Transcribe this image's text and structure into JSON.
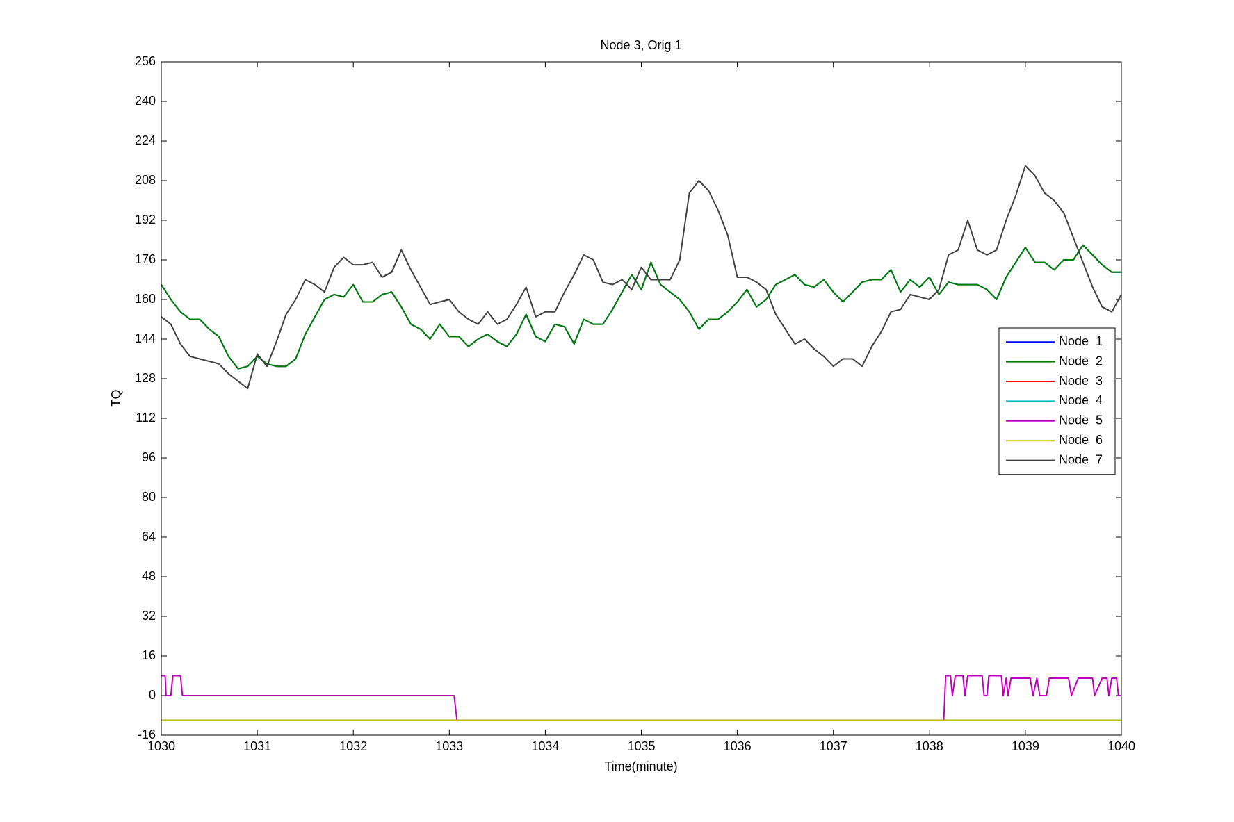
{
  "chart_data": {
    "type": "line",
    "title": "Node 3, Orig 1",
    "xlabel": "Time(minute)",
    "ylabel": "TQ",
    "xlim": [
      1030,
      1040
    ],
    "ylim": [
      -16,
      256
    ],
    "xticks": [
      1030,
      1031,
      1032,
      1033,
      1034,
      1035,
      1036,
      1037,
      1038,
      1039,
      1040
    ],
    "yticks": [
      -16,
      0,
      16,
      32,
      48,
      64,
      80,
      96,
      112,
      128,
      144,
      160,
      176,
      192,
      208,
      224,
      240,
      256
    ],
    "legend": "right",
    "x": [
      1030,
      1030.1,
      1030.2,
      1030.3,
      1030.4,
      1030.5,
      1030.6,
      1030.7,
      1030.8,
      1030.9,
      1031,
      1031.1,
      1031.2,
      1031.3,
      1031.4,
      1031.5,
      1031.6,
      1031.7,
      1031.8,
      1031.9,
      1032,
      1032.1,
      1032.2,
      1032.3,
      1032.4,
      1032.5,
      1032.6,
      1032.7,
      1032.8,
      1032.9,
      1033,
      1033.1,
      1033.2,
      1033.3,
      1033.4,
      1033.5,
      1033.6,
      1033.7,
      1033.8,
      1033.9,
      1034,
      1034.1,
      1034.2,
      1034.3,
      1034.4,
      1034.5,
      1034.6,
      1034.7,
      1034.8,
      1034.9,
      1035,
      1035.1,
      1035.2,
      1035.3,
      1035.4,
      1035.5,
      1035.6,
      1035.7,
      1035.8,
      1035.9,
      1036,
      1036.1,
      1036.2,
      1036.3,
      1036.4,
      1036.5,
      1036.6,
      1036.7,
      1036.8,
      1036.9,
      1037,
      1037.1,
      1037.2,
      1037.3,
      1037.4,
      1037.5,
      1037.6,
      1037.7,
      1037.8,
      1037.9,
      1038,
      1038.1,
      1038.2,
      1038.3,
      1038.4,
      1038.5,
      1038.6,
      1038.7,
      1038.8,
      1038.9,
      1039,
      1039.1,
      1039.2,
      1039.3,
      1039.4,
      1039.5,
      1039.6,
      1039.7,
      1039.8,
      1039.9,
      1040
    ],
    "series": [
      {
        "name": "Node  1",
        "color": "#0000ff",
        "values": [
          166,
          160,
          155,
          152,
          152,
          148,
          145,
          137,
          132,
          133,
          137,
          134,
          133,
          133,
          136,
          146,
          153,
          160,
          162,
          161,
          166,
          159,
          159,
          162,
          163,
          157,
          150,
          148,
          144,
          150,
          145,
          145,
          141,
          144,
          146,
          143,
          141,
          146,
          154,
          145,
          143,
          150,
          149,
          142,
          152,
          150,
          150,
          156,
          163,
          170,
          164,
          175,
          166,
          163,
          160,
          155,
          148,
          152,
          152,
          155,
          159,
          164,
          157,
          160,
          166,
          168,
          170,
          166,
          165,
          168,
          163,
          159,
          163,
          167,
          168,
          168,
          172,
          163,
          168,
          165,
          169,
          162,
          167,
          166,
          166,
          166,
          164,
          160,
          169,
          175,
          181,
          175,
          175,
          172,
          176,
          176,
          182,
          178,
          174,
          171,
          171
        ]
      },
      {
        "name": "Node  2",
        "color": "#008000",
        "values": [
          166,
          160,
          155,
          152,
          152,
          148,
          145,
          137,
          132,
          133,
          137,
          134,
          133,
          133,
          136,
          146,
          153,
          160,
          162,
          161,
          166,
          159,
          159,
          162,
          163,
          157,
          150,
          148,
          144,
          150,
          145,
          145,
          141,
          144,
          146,
          143,
          141,
          146,
          154,
          145,
          143,
          150,
          149,
          142,
          152,
          150,
          150,
          156,
          163,
          170,
          164,
          175,
          166,
          163,
          160,
          155,
          148,
          152,
          152,
          155,
          159,
          164,
          157,
          160,
          166,
          168,
          170,
          166,
          165,
          168,
          163,
          159,
          163,
          167,
          168,
          168,
          172,
          163,
          168,
          165,
          169,
          162,
          167,
          166,
          166,
          166,
          164,
          160,
          169,
          175,
          181,
          175,
          175,
          172,
          176,
          176,
          182,
          178,
          174,
          171,
          171
        ]
      },
      {
        "name": "Node  3",
        "color": "#ff0000",
        "x": [
          1030,
          1040
        ],
        "values": [
          -10,
          -10
        ]
      },
      {
        "name": "Node  4",
        "color": "#00bfbf",
        "x": [
          1030,
          1040
        ],
        "values": [
          -10,
          -10
        ]
      },
      {
        "name": "Node  5",
        "color": "#bf00bf",
        "x": [
          1030,
          1030.04,
          1030.05,
          1030.1,
          1030.12,
          1030.2,
          1030.22,
          1033.05,
          1033.08,
          1038.15,
          1038.17,
          1038.22,
          1038.24,
          1038.27,
          1038.35,
          1038.37,
          1038.4,
          1038.55,
          1038.57,
          1038.6,
          1038.62,
          1038.75,
          1038.77,
          1038.8,
          1038.82,
          1038.85,
          1039.05,
          1039.08,
          1039.12,
          1039.15,
          1039.22,
          1039.25,
          1039.45,
          1039.48,
          1039.55,
          1039.7,
          1039.72,
          1039.8,
          1039.85,
          1039.87,
          1039.9,
          1039.95,
          1039.97,
          1040
        ],
        "values": [
          8,
          8,
          0,
          0,
          8,
          8,
          0,
          0,
          -10,
          -10,
          8,
          8,
          0,
          8,
          8,
          0,
          8,
          8,
          0,
          0,
          8,
          8,
          0,
          7,
          0,
          7,
          7,
          0,
          7,
          0,
          0,
          7,
          7,
          0,
          7,
          7,
          0,
          7,
          7,
          0,
          7,
          7,
          0,
          0
        ]
      },
      {
        "name": "Node  6",
        "color": "#bfbf00",
        "x": [
          1030,
          1040
        ],
        "values": [
          -10,
          -10
        ]
      },
      {
        "name": "Node  7",
        "color": "#404040",
        "values": [
          153,
          150,
          142,
          137,
          136,
          135,
          134,
          130,
          127,
          124,
          138,
          133,
          143,
          154,
          160,
          168,
          166,
          163,
          173,
          177,
          174,
          174,
          175,
          169,
          171,
          180,
          172,
          165,
          158,
          159,
          160,
          155,
          152,
          150,
          155,
          150,
          152,
          158,
          165,
          153,
          155,
          155,
          163,
          170,
          178,
          176,
          167,
          166,
          168,
          164,
          173,
          168,
          168,
          168,
          176,
          203,
          208,
          204,
          196,
          186,
          169,
          169,
          167,
          164,
          154,
          148,
          142,
          144,
          140,
          137,
          133,
          136,
          136,
          133,
          141,
          147,
          155,
          156,
          162,
          161,
          160,
          164,
          178,
          180,
          192,
          180,
          178,
          180,
          192,
          202,
          214,
          210,
          203,
          200,
          195,
          185,
          175,
          165,
          157,
          155,
          162
        ]
      }
    ]
  }
}
